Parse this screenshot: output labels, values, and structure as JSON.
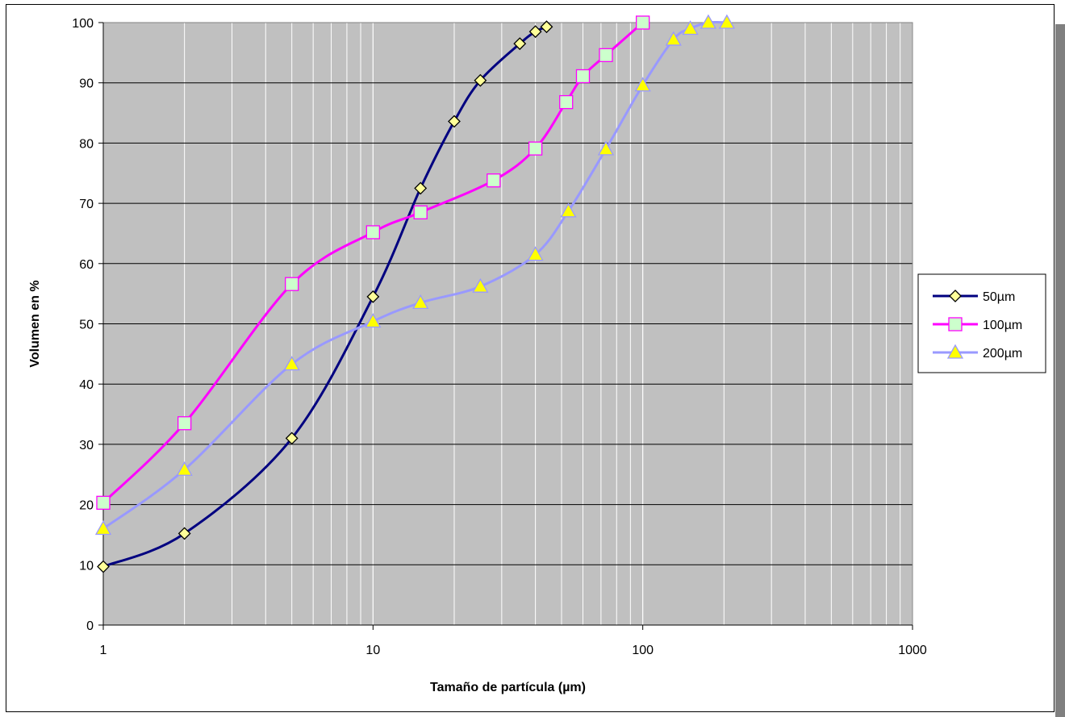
{
  "chart_data": {
    "type": "line",
    "xscale": "log",
    "xlim": [
      1,
      1000
    ],
    "ylim": [
      0,
      100
    ],
    "xlabel": "Tamaño de partícula (µm)",
    "ylabel": "Volumen en %",
    "x_tick_labels": [
      "1",
      "10",
      "100",
      "1000"
    ],
    "y_tick_labels": [
      "0",
      "10",
      "20",
      "30",
      "40",
      "50",
      "60",
      "70",
      "80",
      "90",
      "100"
    ],
    "grid": true,
    "legend_position": "right",
    "plot_background": "#c0c0c0",
    "series": [
      {
        "name": "50µm",
        "color": "#000080",
        "marker": "diamond",
        "marker_fill": "#ffff99",
        "points": [
          [
            1,
            9.7
          ],
          [
            2,
            15.2
          ],
          [
            5,
            31.0
          ],
          [
            10,
            54.5
          ],
          [
            15,
            72.5
          ],
          [
            20,
            83.6
          ],
          [
            25,
            90.4
          ],
          [
            35,
            96.5
          ],
          [
            40,
            98.5
          ],
          [
            44,
            99.3
          ]
        ]
      },
      {
        "name": "100µm",
        "color": "#ff00ff",
        "marker": "square",
        "marker_fill": "#ccffcc",
        "points": [
          [
            1,
            20.3
          ],
          [
            2,
            33.5
          ],
          [
            5,
            56.6
          ],
          [
            10,
            65.2
          ],
          [
            15,
            68.5
          ],
          [
            28,
            73.8
          ],
          [
            40,
            79.1
          ],
          [
            52,
            86.8
          ],
          [
            60,
            91.1
          ],
          [
            73,
            94.6
          ],
          [
            100,
            100
          ]
        ]
      },
      {
        "name": "200µm",
        "color": "#9999ff",
        "marker": "triangle",
        "marker_fill": "#ffff00",
        "points": [
          [
            1,
            16.0
          ],
          [
            2,
            25.8
          ],
          [
            5,
            43.3
          ],
          [
            10,
            50.4
          ],
          [
            15,
            53.5
          ],
          [
            25,
            56.2
          ],
          [
            40,
            61.5
          ],
          [
            53,
            68.7
          ],
          [
            73,
            79.0
          ],
          [
            100,
            89.6
          ],
          [
            130,
            97.2
          ],
          [
            150,
            99.0
          ],
          [
            175,
            100
          ],
          [
            205,
            100
          ]
        ]
      }
    ]
  }
}
